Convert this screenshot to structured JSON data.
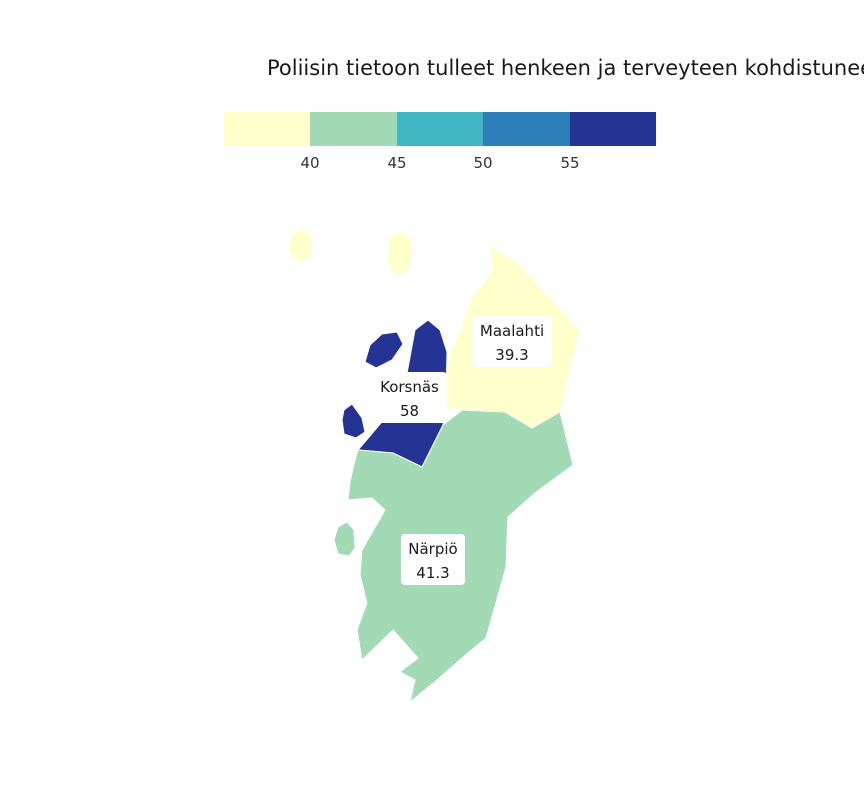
{
  "title": "Poliisin tietoon tulleet henkeen ja terveyteen kohdistunee",
  "legend": {
    "colors": [
      "#ffffcc",
      "#a1dab4",
      "#41b6c4",
      "#2c7fb8",
      "#253494"
    ],
    "breaks": [
      "40",
      "45",
      "50",
      "55"
    ]
  },
  "regions": [
    {
      "name": "Maalahti",
      "value": "39.3",
      "color": "#ffffcc"
    },
    {
      "name": "Korsnäs",
      "value": "58",
      "color": "#253494"
    },
    {
      "name": "Närpiö",
      "value": "41.3",
      "color": "#a1dab4"
    }
  ]
}
